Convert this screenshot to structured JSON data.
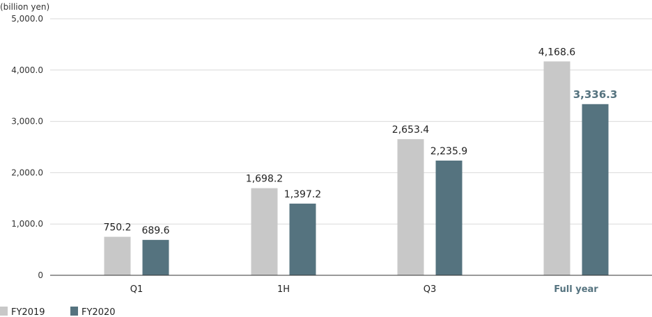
{
  "colors": {
    "fy2019": "#c8c8c8",
    "fy2020": "#55737f",
    "highlight_text": "#55737f",
    "grid": "#d9d9d9",
    "axis": "#333333"
  },
  "chart_data": {
    "type": "bar",
    "unit_label": "(billion yen)",
    "categories": [
      "Q1",
      "1H",
      "Q3",
      "Full year"
    ],
    "highlight_category": "Full year",
    "series": [
      {
        "name": "FY2019",
        "values": [
          750.2,
          1698.2,
          2653.4,
          4168.6
        ],
        "labels": [
          "750.2",
          "1,698.2",
          "2,653.4",
          "4,168.6"
        ]
      },
      {
        "name": "FY2020",
        "values": [
          689.6,
          1397.2,
          2235.9,
          3336.3
        ],
        "labels": [
          "689.6",
          "1,397.2",
          "2,235.9",
          "3,336.3"
        ]
      }
    ],
    "ylim": [
      0,
      5000
    ],
    "yticks": [
      0,
      1000,
      2000,
      3000,
      4000,
      5000
    ],
    "ytick_labels": [
      "0",
      "1,000.0",
      "2,000.0",
      "3,000.0",
      "4,000.0",
      "5,000.0"
    ],
    "grid": true,
    "legend_position": "bottom-left"
  }
}
